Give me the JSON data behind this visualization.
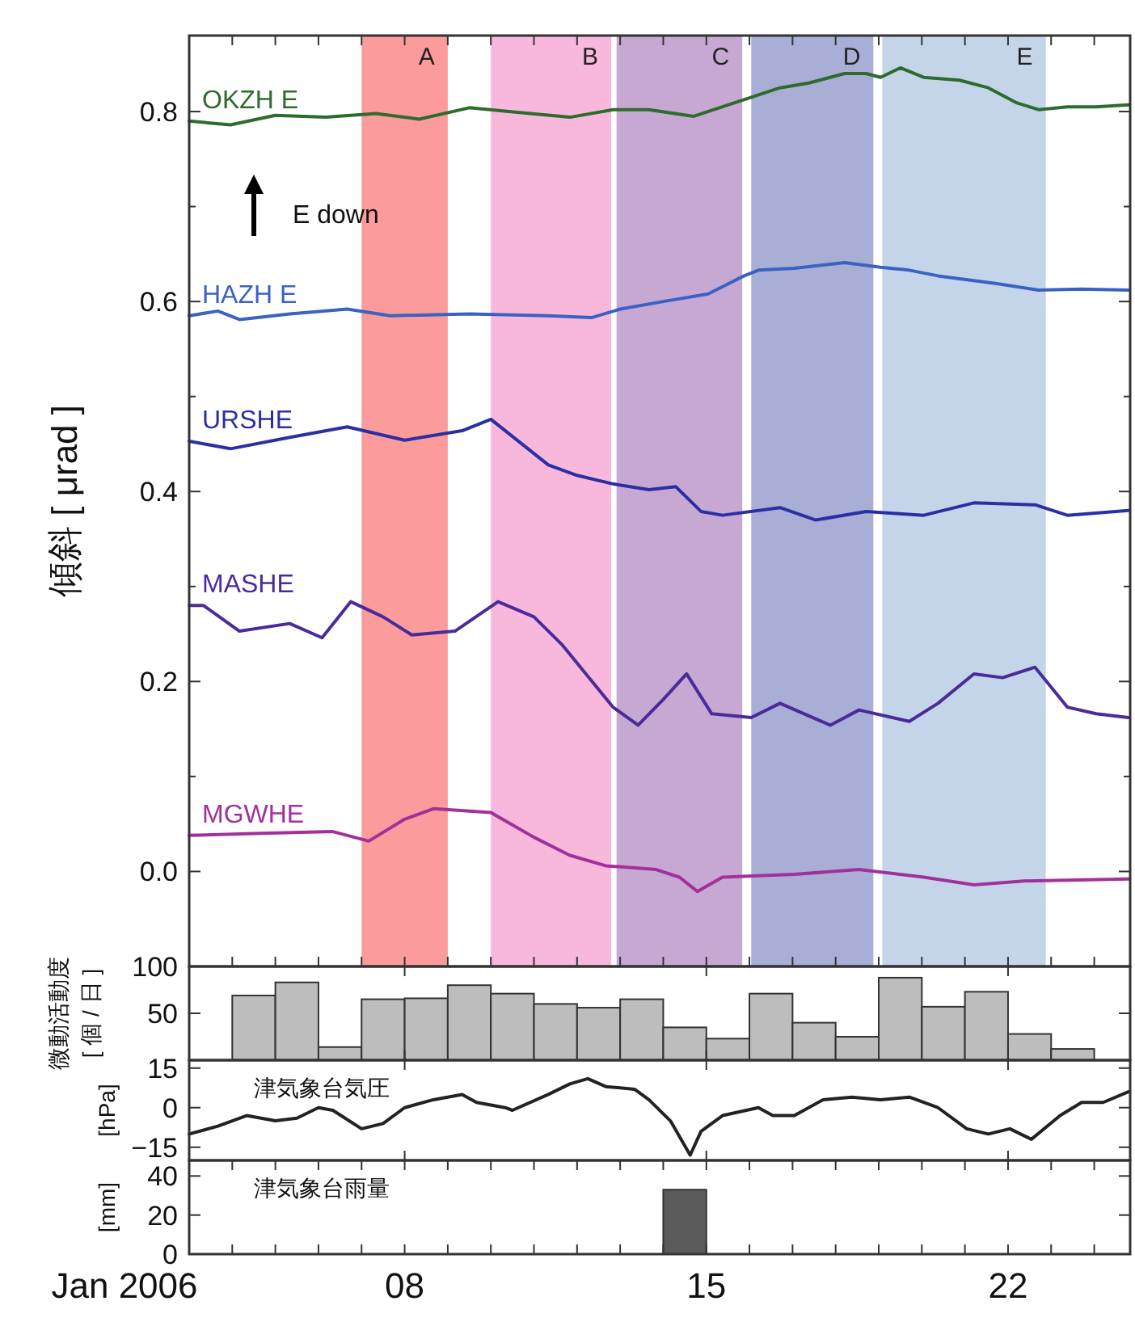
{
  "chart_data": [
    {
      "type": "line",
      "ylabel": "傾斜 [ μrad ]",
      "xlim": [
        "2006-01-03T00:00",
        "2006-01-24T20:00"
      ],
      "ylim": [
        -0.1,
        0.88
      ],
      "tick_labels": "y",
      "xticks": [
        {
          "value": "2006-01-04",
          "label": null
        },
        {
          "value": "2006-01-05",
          "label": null
        },
        {
          "value": "2006-01-06",
          "label": null
        },
        {
          "value": "2006-01-07",
          "label": null
        },
        {
          "value": "2006-01-08",
          "label": null
        },
        {
          "value": "2006-01-09",
          "label": null
        },
        {
          "value": "2006-01-10",
          "label": null
        },
        {
          "value": "2006-01-11",
          "label": null
        },
        {
          "value": "2006-01-12",
          "label": null
        },
        {
          "value": "2006-01-13",
          "label": null
        },
        {
          "value": "2006-01-14",
          "label": null
        },
        {
          "value": "2006-01-15",
          "label": null
        },
        {
          "value": "2006-01-16",
          "label": null
        },
        {
          "value": "2006-01-17",
          "label": null
        },
        {
          "value": "2006-01-18",
          "label": null
        },
        {
          "value": "2006-01-19",
          "label": null
        },
        {
          "value": "2006-01-20",
          "label": null
        },
        {
          "value": "2006-01-21",
          "label": null
        },
        {
          "value": "2006-01-22",
          "label": null
        },
        {
          "value": "2006-01-23",
          "label": null
        },
        {
          "value": "2006-01-24",
          "label": null
        }
      ],
      "yticks": [
        {
          "value": 0,
          "label": "0.0"
        },
        {
          "value": 0.1,
          "label": null
        },
        {
          "value": 0.2,
          "label": "0.2"
        },
        {
          "value": 0.3,
          "label": null
        },
        {
          "value": 0.4,
          "label": "0.4"
        },
        {
          "value": 0.5,
          "label": null
        },
        {
          "value": 0.6,
          "label": "0.6"
        },
        {
          "value": 0.7,
          "label": null
        },
        {
          "value": 0.8,
          "label": "0.8"
        }
      ],
      "annotations": [
        "E down"
      ],
      "bands": [
        {
          "axis": "x",
          "from": "2006-01-07T00:00",
          "to": "2006-01-09T00:00",
          "label": "A",
          "color": "#fb9b9b"
        },
        {
          "axis": "x",
          "from": "2006-01-10T00:00",
          "to": "2006-01-12T19:00",
          "label": "B",
          "color": "#f7b8dc"
        },
        {
          "axis": "x",
          "from": "2006-01-12T22:00",
          "to": "2006-01-15T20:00",
          "label": "C",
          "color": "#c6a8d3"
        },
        {
          "axis": "x",
          "from": "2006-01-16T01:00",
          "to": "2006-01-18T21:00",
          "label": "D",
          "color": "#a8aed6"
        },
        {
          "axis": "x",
          "from": "2006-01-19T02:00",
          "to": "2006-01-22T21:00",
          "label": "E",
          "color": "#c4d5e9"
        }
      ],
      "series": [
        {
          "name": "OKZH E",
          "color": "#2e6b2e",
          "x": [
            "2006-01-03T00:00",
            "2006-01-03T23:00",
            "2006-01-05T00:00",
            "2006-01-06T04:00",
            "2006-01-07T08:00",
            "2006-01-08T08:00",
            "2006-01-09T12:00",
            "2006-01-10T16:00",
            "2006-01-11T20:00",
            "2006-01-12T20:00",
            "2006-01-13T16:00",
            "2006-01-14T17:00",
            "2006-01-15T09:00",
            "2006-01-16T01:00",
            "2006-01-16T17:00",
            "2006-01-17T09:00",
            "2006-01-18T05:00",
            "2006-01-18T17:00",
            "2006-01-19T01:00",
            "2006-01-19T12:00",
            "2006-01-20T01:00",
            "2006-01-20T21:00",
            "2006-01-21T13:00",
            "2006-01-22T05:00",
            "2006-01-22T17:00",
            "2006-01-23T09:00",
            "2006-01-24T01:00",
            "2006-01-24T19:00"
          ],
          "values": [
            0.79,
            0.786,
            0.796,
            0.794,
            0.798,
            0.792,
            0.804,
            0.799,
            0.794,
            0.802,
            0.802,
            0.795,
            0.805,
            0.815,
            0.825,
            0.83,
            0.84,
            0.84,
            0.836,
            0.846,
            0.836,
            0.833,
            0.825,
            0.809,
            0.802,
            0.805,
            0.805,
            0.807
          ]
        },
        {
          "name": "HAZH E",
          "color": "#3a62c4",
          "x": [
            "2006-01-03T00:00",
            "2006-01-03T16:00",
            "2006-01-04T04:00",
            "2006-01-05T08:00",
            "2006-01-06T16:00",
            "2006-01-07T16:00",
            "2006-01-09T12:00",
            "2006-01-11T08:00",
            "2006-01-12T08:00",
            "2006-01-13T00:00",
            "2006-01-14T00:00",
            "2006-01-15T01:00",
            "2006-01-15T21:00",
            "2006-01-16T05:00",
            "2006-01-17T01:00",
            "2006-01-18T05:00",
            "2006-01-19T01:00",
            "2006-01-19T17:00",
            "2006-01-20T09:00",
            "2006-01-21T17:00",
            "2006-01-22T17:00",
            "2006-01-23T17:00",
            "2006-01-24T19:00"
          ],
          "values": [
            0.585,
            0.59,
            0.581,
            0.587,
            0.592,
            0.585,
            0.587,
            0.585,
            0.583,
            0.592,
            0.6,
            0.608,
            0.627,
            0.633,
            0.635,
            0.641,
            0.636,
            0.633,
            0.627,
            0.619,
            0.612,
            0.613,
            0.612
          ]
        },
        {
          "name": "URSHE",
          "color": "#2a30a3",
          "x": [
            "2006-01-03T00:00",
            "2006-01-03T23:00",
            "2006-01-05T08:00",
            "2006-01-06T16:00",
            "2006-01-08T00:00",
            "2006-01-09T08:00",
            "2006-01-10T00:00",
            "2006-01-11T08:00",
            "2006-01-12T00:00",
            "2006-01-12T20:00",
            "2006-01-13T16:00",
            "2006-01-14T07:00",
            "2006-01-14T21:00",
            "2006-01-15T09:00",
            "2006-01-16T17:00",
            "2006-01-17T13:00",
            "2006-01-18T17:00",
            "2006-01-20T01:00",
            "2006-01-21T05:00",
            "2006-01-22T15:00",
            "2006-01-23T09:00",
            "2006-01-24T19:00"
          ],
          "values": [
            0.453,
            0.445,
            0.457,
            0.468,
            0.454,
            0.464,
            0.476,
            0.428,
            0.417,
            0.408,
            0.402,
            0.405,
            0.379,
            0.375,
            0.383,
            0.37,
            0.379,
            0.375,
            0.388,
            0.386,
            0.375,
            0.38
          ]
        },
        {
          "name": "MASHE",
          "color": "#4b2b9c",
          "x": [
            "2006-01-03T00:00",
            "2006-01-03T08:00",
            "2006-01-04T04:00",
            "2006-01-05T08:00",
            "2006-01-06T02:00",
            "2006-01-06T18:00",
            "2006-01-07T12:00",
            "2006-01-08T04:00",
            "2006-01-09T04:00",
            "2006-01-10T04:00",
            "2006-01-11T00:00",
            "2006-01-11T16:00",
            "2006-01-12T20:00",
            "2006-01-13T10:00",
            "2006-01-14T00:00",
            "2006-01-14T13:00",
            "2006-01-15T03:00",
            "2006-01-16T01:00",
            "2006-01-16T17:00",
            "2006-01-17T21:00",
            "2006-01-18T13:00",
            "2006-01-19T17:00",
            "2006-01-20T09:00",
            "2006-01-21T05:00",
            "2006-01-21T21:00",
            "2006-01-22T15:00",
            "2006-01-23T09:00",
            "2006-01-24T01:00",
            "2006-01-24T19:00"
          ],
          "values": [
            0.28,
            0.28,
            0.253,
            0.261,
            0.246,
            0.284,
            0.268,
            0.249,
            0.253,
            0.284,
            0.268,
            0.238,
            0.173,
            0.154,
            0.181,
            0.208,
            0.166,
            0.162,
            0.177,
            0.154,
            0.17,
            0.158,
            0.177,
            0.208,
            0.204,
            0.215,
            0.173,
            0.166,
            0.162
          ]
        },
        {
          "name": "MGWHE",
          "color": "#a2309c",
          "x": [
            "2006-01-03T00:00",
            "2006-01-04T12:00",
            "2006-01-06T08:00",
            "2006-01-07T04:00",
            "2006-01-08T00:00",
            "2006-01-08T16:00",
            "2006-01-10T00:00",
            "2006-01-11T00:00",
            "2006-01-11T20:00",
            "2006-01-12T16:00",
            "2006-01-13T20:00",
            "2006-01-14T09:00",
            "2006-01-14T19:00",
            "2006-01-15T09:00",
            "2006-01-17T01:00",
            "2006-01-18T13:00",
            "2006-01-20T01:00",
            "2006-01-21T05:00",
            "2006-01-22T09:00",
            "2006-01-24T19:00"
          ],
          "values": [
            0.038,
            0.04,
            0.042,
            0.032,
            0.055,
            0.066,
            0.062,
            0.036,
            0.017,
            0.006,
            0.002,
            -0.006,
            -0.021,
            -0.006,
            -0.003,
            0.002,
            -0.006,
            -0.014,
            -0.01,
            -0.008
          ]
        }
      ]
    },
    {
      "type": "bar",
      "ylabel": "微動活動度 [ 個 / 日 ]",
      "xlim": [
        "2006-01-03T00:00",
        "2006-01-24T20:00"
      ],
      "ylim": [
        0,
        100
      ],
      "yticks": [
        {
          "value": 0,
          "label": null
        },
        50,
        100
      ],
      "tick_labels": "y",
      "xticks": [
        {
          "value": "2006-01-08",
          "label": null
        },
        {
          "value": "2006-01-15",
          "label": null
        },
        {
          "value": "2006-01-22",
          "label": null
        }
      ],
      "series": [
        {
          "color": "#bdbdbd",
          "x": [
            "2006-01-04T12:00",
            "2006-01-05T12:00",
            "2006-01-06T12:00",
            "2006-01-07T12:00",
            "2006-01-08T12:00",
            "2006-01-09T12:00",
            "2006-01-10T12:00",
            "2006-01-11T12:00",
            "2006-01-12T12:00",
            "2006-01-13T12:00",
            "2006-01-14T12:00",
            "2006-01-15T12:00",
            "2006-01-16T12:00",
            "2006-01-17T12:00",
            "2006-01-18T12:00",
            "2006-01-19T12:00",
            "2006-01-20T12:00",
            "2006-01-21T12:00",
            "2006-01-22T12:00",
            "2006-01-23T12:00"
          ],
          "values": [
            69,
            83,
            14,
            65,
            66,
            80,
            71,
            60,
            56,
            65,
            35,
            23,
            71,
            40,
            25,
            88,
            57,
            73,
            28,
            12
          ]
        }
      ]
    },
    {
      "type": "line",
      "title": "津気象台気圧",
      "ylabel": "[hPa]",
      "xlim": [
        "2006-01-03T00:00",
        "2006-01-24T20:00"
      ],
      "ylim": [
        -20,
        18
      ],
      "yticks": [
        -15,
        0,
        15
      ],
      "tick_labels": "y",
      "xticks": [
        {
          "value": "2006-01-08",
          "label": null
        },
        {
          "value": "2006-01-15",
          "label": null
        },
        {
          "value": "2006-01-22",
          "label": null
        }
      ],
      "series": [
        {
          "color": "#222222",
          "x": [
            "2006-01-03T00:00",
            "2006-01-03T16:00",
            "2006-01-04T08:00",
            "2006-01-05T00:00",
            "2006-01-05T12:00",
            "2006-01-06T00:00",
            "2006-01-06T08:00",
            "2006-01-07T00:00",
            "2006-01-07T12:00",
            "2006-01-08T00:00",
            "2006-01-08T16:00",
            "2006-01-09T08:00",
            "2006-01-09T16:00",
            "2006-01-10T08:00",
            "2006-01-10T12:00",
            "2006-01-11T08:00",
            "2006-01-11T20:00",
            "2006-01-12T06:00",
            "2006-01-12T16:00",
            "2006-01-13T08:00",
            "2006-01-13T16:00",
            "2006-01-14T04:00",
            "2006-01-14T15:00",
            "2006-01-14T21:00",
            "2006-01-15T09:00",
            "2006-01-16T05:00",
            "2006-01-16T13:00",
            "2006-01-17T01:00",
            "2006-01-17T17:00",
            "2006-01-18T09:00",
            "2006-01-19T01:00",
            "2006-01-19T17:00",
            "2006-01-20T09:00",
            "2006-01-21T01:00",
            "2006-01-21T13:00",
            "2006-01-22T01:00",
            "2006-01-22T13:00",
            "2006-01-23T05:00",
            "2006-01-23T17:00",
            "2006-01-24T05:00",
            "2006-01-24T19:00"
          ],
          "values": [
            -10,
            -7,
            -3,
            -5,
            -4,
            0,
            -1,
            -8,
            -6,
            0,
            3,
            5,
            2,
            0,
            -1,
            5,
            9,
            11,
            8,
            7,
            3,
            -5,
            -18,
            -9,
            -3,
            0,
            -3,
            -3,
            3,
            4,
            3,
            4,
            0,
            -8,
            -10,
            -8,
            -12,
            -3,
            2,
            2,
            6
          ]
        }
      ]
    },
    {
      "type": "bar",
      "title": "津気象台雨量",
      "ylabel": "[mm]",
      "xlabel": "Jan 2006",
      "xlim": [
        "2006-01-03T00:00",
        "2006-01-24T20:00"
      ],
      "ylim": [
        0,
        48
      ],
      "yticks": [
        0,
        20,
        40
      ],
      "xticks": [
        {
          "value": "2006-01-04",
          "label": null
        },
        {
          "value": "2006-01-05",
          "label": null
        },
        {
          "value": "2006-01-06",
          "label": null
        },
        {
          "value": "2006-01-07",
          "label": null
        },
        {
          "value": "2006-01-08",
          "label": "08"
        },
        {
          "value": "2006-01-09",
          "label": null
        },
        {
          "value": "2006-01-10",
          "label": null
        },
        {
          "value": "2006-01-11",
          "label": null
        },
        {
          "value": "2006-01-12",
          "label": null
        },
        {
          "value": "2006-01-13",
          "label": null
        },
        {
          "value": "2006-01-14",
          "label": null
        },
        {
          "value": "2006-01-15",
          "label": "15"
        },
        {
          "value": "2006-01-16",
          "label": null
        },
        {
          "value": "2006-01-17",
          "label": null
        },
        {
          "value": "2006-01-18",
          "label": null
        },
        {
          "value": "2006-01-19",
          "label": null
        },
        {
          "value": "2006-01-20",
          "label": null
        },
        {
          "value": "2006-01-21",
          "label": null
        },
        {
          "value": "2006-01-22",
          "label": "22"
        },
        {
          "value": "2006-01-23",
          "label": null
        },
        {
          "value": "2006-01-24",
          "label": null
        }
      ],
      "series": [
        {
          "color": "#5a5a5a",
          "x": [
            "2006-01-14T12:00"
          ],
          "values": [
            33
          ]
        }
      ]
    }
  ]
}
